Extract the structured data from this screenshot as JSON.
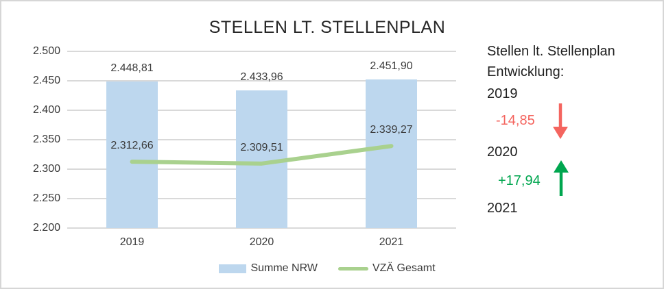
{
  "chart_data": {
    "type": "combo",
    "title": "STELLEN LT. STELLENPLAN",
    "categories": [
      "2019",
      "2020",
      "2021"
    ],
    "series": [
      {
        "name": "Summe NRW",
        "type": "bar",
        "color": "#bdd7ee",
        "values": [
          2448.81,
          2433.96,
          2451.9
        ],
        "labels": [
          "2.448,81",
          "2.433,96",
          "2.451,90"
        ]
      },
      {
        "name": "VZÄ Gesamt",
        "type": "line",
        "color": "#a9d18e",
        "values": [
          2312.66,
          2309.51,
          2339.27
        ],
        "labels": [
          "2.312,66",
          "2.309,51",
          "2.339,27"
        ]
      }
    ],
    "ylim": [
      2200,
      2500
    ],
    "y_ticks": [
      "2.500",
      "2.450",
      "2.400",
      "2.350",
      "2.300",
      "2.250",
      "2.200"
    ],
    "grid": true,
    "legend_position": "bottom"
  },
  "side_panel": {
    "heading": [
      "Stellen lt. Stellenplan",
      "Entwicklung:"
    ],
    "rows": [
      {
        "type": "year",
        "text": "2019"
      },
      {
        "type": "delta",
        "text": "-14,85",
        "direction": "down",
        "color": "#f4655f",
        "arrow_icon": "arrow-down-icon"
      },
      {
        "type": "year",
        "text": "2020"
      },
      {
        "type": "delta",
        "text": "+17,94",
        "direction": "up",
        "color": "#00a64f",
        "arrow_icon": "arrow-up-icon"
      },
      {
        "type": "year",
        "text": "2021"
      }
    ]
  },
  "frame": {
    "border_color": "#d6d6d6",
    "gridline_color": "#d9d9d9",
    "background": "#ffffff"
  }
}
